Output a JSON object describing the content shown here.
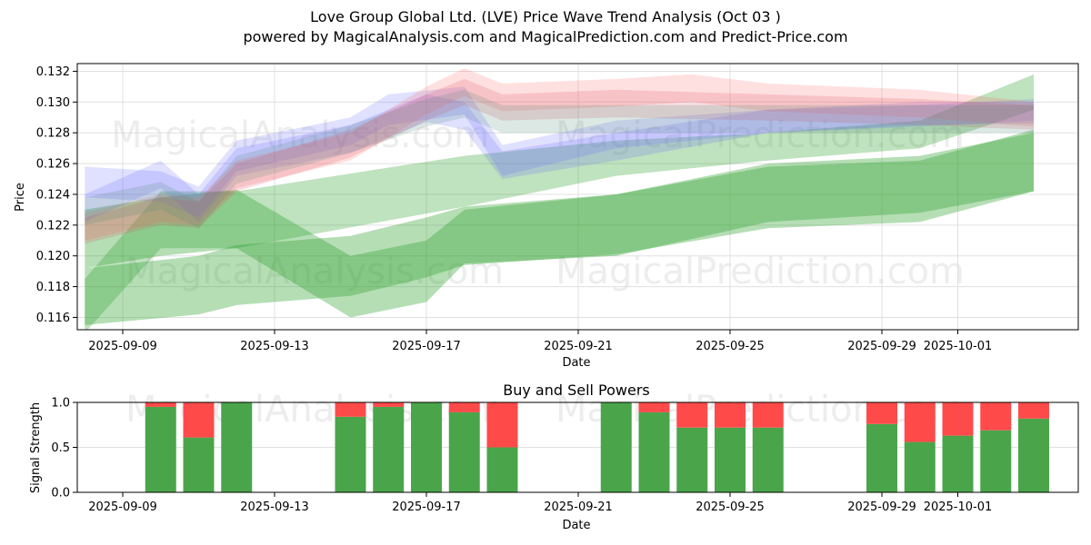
{
  "header": {
    "title": "Love Group Global Ltd. (LVE) Price Wave Trend Analysis (Oct 03 )",
    "subtitle": "powered by MagicalAnalysis.com and MagicalPrediction.com and Predict-Price.com"
  },
  "watermarks": [
    "MagicalAnalysis.com",
    "MagicalPrediction.com"
  ],
  "chart_data": [
    {
      "type": "area",
      "name": "price-wave",
      "title": "Love Group Global Ltd. (LVE) Price Wave Trend Analysis (Oct 03 )",
      "xlabel": "Date",
      "ylabel": "Price",
      "ylim": [
        0.1152,
        0.1325
      ],
      "xlim": [
        "2025-09-08",
        "2025-10-04"
      ],
      "grid": true,
      "xticks": [
        "2025-09-09",
        "2025-09-13",
        "2025-09-17",
        "2025-09-21",
        "2025-09-25",
        "2025-09-29",
        "2025-10-01"
      ],
      "yticks": [
        "0.116",
        "0.118",
        "0.120",
        "0.122",
        "0.124",
        "0.126",
        "0.128",
        "0.130",
        "0.132"
      ],
      "series": [
        {
          "name": "green-band-1",
          "color": "#2ca02c",
          "opacity": 0.35,
          "x": [
            "2025-09-08",
            "2025-09-11",
            "2025-09-12",
            "2025-09-15",
            "2025-09-17",
            "2025-09-18",
            "2025-09-22",
            "2025-09-26",
            "2025-09-30",
            "2025-10-03"
          ],
          "upper": [
            0.1192,
            0.12,
            0.1207,
            0.1213,
            0.1225,
            0.1232,
            0.124,
            0.1258,
            0.1262,
            0.1282
          ],
          "lower": [
            0.1155,
            0.1162,
            0.1168,
            0.1174,
            0.1186,
            0.1194,
            0.1201,
            0.1218,
            0.1222,
            0.1242
          ]
        },
        {
          "name": "green-band-2",
          "color": "#2ca02c",
          "opacity": 0.35,
          "x": [
            "2025-09-08",
            "2025-09-10",
            "2025-09-12",
            "2025-09-15",
            "2025-09-17",
            "2025-09-18",
            "2025-09-22",
            "2025-09-26",
            "2025-09-30",
            "2025-10-03"
          ],
          "upper": [
            0.123,
            0.1238,
            0.1243,
            0.12,
            0.121,
            0.123,
            0.124,
            0.126,
            0.1265,
            0.128
          ],
          "lower": [
            0.1192,
            0.12,
            0.1205,
            0.116,
            0.117,
            0.1195,
            0.12,
            0.1222,
            0.1228,
            0.1242
          ]
        },
        {
          "name": "green-band-3",
          "color": "#2ca02c",
          "opacity": 0.3,
          "x": [
            "2025-09-08",
            "2025-09-10",
            "2025-09-12",
            "2025-09-18",
            "2025-09-22",
            "2025-09-26",
            "2025-09-30",
            "2025-10-03"
          ],
          "upper": [
            0.1185,
            0.1242,
            0.1242,
            0.1265,
            0.1275,
            0.128,
            0.1288,
            0.1318
          ],
          "lower": [
            0.115,
            0.1205,
            0.1205,
            0.1232,
            0.1252,
            0.1262,
            0.127,
            0.1295
          ]
        },
        {
          "name": "blue-band-1",
          "color": "#6464ff",
          "opacity": 0.2,
          "x": [
            "2025-09-08",
            "2025-09-10",
            "2025-09-11",
            "2025-09-12",
            "2025-09-15",
            "2025-09-16",
            "2025-09-18",
            "2025-09-19",
            "2025-09-22",
            "2025-09-26",
            "2025-09-30",
            "2025-10-03"
          ],
          "upper": [
            0.1258,
            0.1255,
            0.1245,
            0.1275,
            0.129,
            0.1305,
            0.131,
            0.1272,
            0.1288,
            0.1295,
            0.1298,
            0.1302
          ],
          "lower": [
            0.1238,
            0.1235,
            0.1225,
            0.1255,
            0.1272,
            0.1285,
            0.1292,
            0.1252,
            0.127,
            0.128,
            0.1284,
            0.1288
          ]
        },
        {
          "name": "blue-band-2",
          "color": "#6464ff",
          "opacity": 0.2,
          "x": [
            "2025-09-08",
            "2025-09-10",
            "2025-09-11",
            "2025-09-12",
            "2025-09-15",
            "2025-09-17",
            "2025-09-18",
            "2025-09-19",
            "2025-09-22",
            "2025-09-26",
            "2025-09-30",
            "2025-10-03"
          ],
          "upper": [
            0.124,
            0.1262,
            0.124,
            0.127,
            0.1285,
            0.1305,
            0.13,
            0.1268,
            0.128,
            0.1295,
            0.13,
            0.13
          ],
          "lower": [
            0.1222,
            0.1244,
            0.1222,
            0.1252,
            0.1267,
            0.1287,
            0.1282,
            0.125,
            0.1262,
            0.128,
            0.1285,
            0.1286
          ]
        },
        {
          "name": "red-band-1",
          "color": "#ff6464",
          "opacity": 0.2,
          "x": [
            "2025-09-08",
            "2025-09-10",
            "2025-09-11",
            "2025-09-12",
            "2025-09-15",
            "2025-09-17",
            "2025-09-18",
            "2025-09-19",
            "2025-09-22",
            "2025-09-24",
            "2025-09-26",
            "2025-09-30",
            "2025-10-03"
          ],
          "upper": [
            0.1228,
            0.124,
            0.1238,
            0.1262,
            0.128,
            0.131,
            0.1322,
            0.1312,
            0.1315,
            0.1318,
            0.1312,
            0.1308,
            0.13
          ],
          "lower": [
            0.121,
            0.1222,
            0.122,
            0.1244,
            0.1262,
            0.1292,
            0.1304,
            0.1294,
            0.1297,
            0.13,
            0.1294,
            0.129,
            0.1284
          ]
        },
        {
          "name": "red-band-2",
          "color": "#dc5064",
          "opacity": 0.2,
          "x": [
            "2025-09-08",
            "2025-09-10",
            "2025-09-11",
            "2025-09-12",
            "2025-09-15",
            "2025-09-17",
            "2025-09-18",
            "2025-09-19",
            "2025-09-22",
            "2025-09-26",
            "2025-09-30",
            "2025-10-03"
          ],
          "upper": [
            0.1225,
            0.1238,
            0.1235,
            0.126,
            0.1282,
            0.1305,
            0.1315,
            0.1305,
            0.1308,
            0.1305,
            0.1302,
            0.1298
          ],
          "lower": [
            0.1208,
            0.122,
            0.1218,
            0.1242,
            0.1264,
            0.1288,
            0.1298,
            0.1288,
            0.129,
            0.1288,
            0.1285,
            0.1282
          ]
        },
        {
          "name": "teal-band",
          "color": "#508c78",
          "opacity": 0.2,
          "x": [
            "2025-09-08",
            "2025-09-10",
            "2025-09-11",
            "2025-09-12",
            "2025-09-15",
            "2025-09-17",
            "2025-09-18",
            "2025-09-19",
            "2025-09-22",
            "2025-09-26",
            "2025-09-30",
            "2025-10-03"
          ],
          "upper": [
            0.1238,
            0.1248,
            0.1235,
            0.1265,
            0.1285,
            0.1302,
            0.1308,
            0.1298,
            0.1298,
            0.1298,
            0.1298,
            0.1298
          ],
          "lower": [
            0.122,
            0.123,
            0.1218,
            0.1247,
            0.1267,
            0.1284,
            0.129,
            0.128,
            0.128,
            0.128,
            0.128,
            0.128
          ]
        }
      ]
    },
    {
      "type": "bar",
      "name": "buy-sell-powers",
      "title": "Buy and Sell Powers",
      "xlabel": "Date",
      "ylabel": "Signal Strength",
      "ylim": [
        0,
        1.0
      ],
      "yticks": [
        "0.0",
        "0.5",
        "1.0"
      ],
      "xticks": [
        "2025-09-09",
        "2025-09-13",
        "2025-09-17",
        "2025-09-21",
        "2025-09-25",
        "2025-09-29",
        "2025-10-01"
      ],
      "grid": true,
      "colors": {
        "buy": "#4aa54a",
        "sell": "#ff4a4a"
      },
      "categories": [
        "2025-09-10",
        "2025-09-11",
        "2025-09-12",
        "2025-09-15",
        "2025-09-16",
        "2025-09-17",
        "2025-09-18",
        "2025-09-19",
        "2025-09-22",
        "2025-09-23",
        "2025-09-24",
        "2025-09-25",
        "2025-09-26",
        "2025-09-29",
        "2025-09-30",
        "2025-10-01",
        "2025-10-02",
        "2025-10-03"
      ],
      "series": [
        {
          "name": "Buy",
          "values": [
            0.95,
            0.61,
            1.0,
            0.84,
            0.95,
            1.0,
            0.89,
            0.5,
            1.0,
            0.89,
            0.72,
            0.72,
            0.72,
            0.76,
            0.56,
            0.63,
            0.69,
            0.82
          ]
        },
        {
          "name": "Sell",
          "values": [
            0.05,
            0.39,
            0.0,
            0.16,
            0.05,
            0.0,
            0.11,
            0.5,
            0.0,
            0.11,
            0.28,
            0.28,
            0.28,
            0.24,
            0.44,
            0.37,
            0.31,
            0.18
          ]
        }
      ]
    }
  ]
}
